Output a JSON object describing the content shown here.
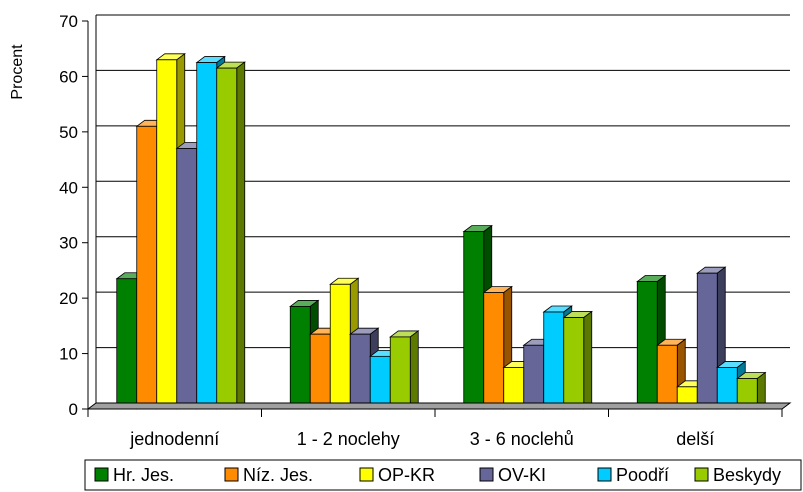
{
  "chart_data": {
    "type": "bar",
    "title": "",
    "xlabel": "",
    "ylabel": "Procent",
    "ylim": [
      0,
      70
    ],
    "yticks": [
      0,
      10,
      20,
      30,
      40,
      50,
      60,
      70
    ],
    "grid": true,
    "legend_position": "bottom",
    "categories": [
      "jednodenní",
      "1 - 2 noclehy",
      "3 - 6 noclehů",
      "delší"
    ],
    "series": [
      {
        "name": "Hr. Jes.",
        "color": "#008000",
        "values": [
          23.5,
          18.5,
          32,
          23
        ]
      },
      {
        "name": "Níz. Jes.",
        "color": "#FF8C00",
        "values": [
          51,
          13.5,
          21,
          11.5
        ]
      },
      {
        "name": "OP-KR",
        "color": "#FFFF00",
        "values": [
          63,
          22.5,
          7.5,
          4
        ]
      },
      {
        "name": "OV-KI",
        "color": "#666699",
        "values": [
          47,
          13.5,
          11.5,
          24.5
        ]
      },
      {
        "name": "Poodří",
        "color": "#00CCFF",
        "values": [
          62.5,
          9.5,
          17.5,
          7.5
        ]
      },
      {
        "name": "Beskydy",
        "color": "#99CC00",
        "values": [
          61.5,
          13,
          16.5,
          5.5
        ]
      }
    ]
  }
}
